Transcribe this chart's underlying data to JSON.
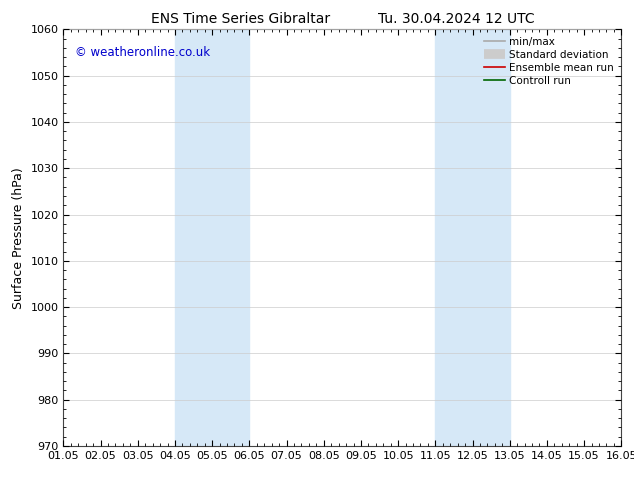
{
  "title_left": "ENS Time Series Gibraltar",
  "title_right": "Tu. 30.04.2024 12 UTC",
  "ylabel": "Surface Pressure (hPa)",
  "ylim": [
    970,
    1060
  ],
  "yticks": [
    970,
    980,
    990,
    1000,
    1010,
    1020,
    1030,
    1040,
    1050,
    1060
  ],
  "xlim": [
    0,
    15
  ],
  "xtick_labels": [
    "01.05",
    "02.05",
    "03.05",
    "04.05",
    "05.05",
    "06.05",
    "07.05",
    "08.05",
    "09.05",
    "10.05",
    "11.05",
    "12.05",
    "13.05",
    "14.05",
    "15.05",
    "16.05"
  ],
  "shaded_bands": [
    {
      "x_start": 3,
      "x_end": 5,
      "color": "#d6e8f7"
    },
    {
      "x_start": 10,
      "x_end": 12,
      "color": "#d6e8f7"
    }
  ],
  "legend_items": [
    {
      "label": "min/max",
      "color": "#aaaaaa",
      "lw": 1.2,
      "style": "line"
    },
    {
      "label": "Standard deviation",
      "color": "#cccccc",
      "lw": 7,
      "style": "band"
    },
    {
      "label": "Ensemble mean run",
      "color": "#cc0000",
      "lw": 1.2,
      "style": "line"
    },
    {
      "label": "Controll run",
      "color": "#006600",
      "lw": 1.2,
      "style": "line"
    }
  ],
  "watermark": "© weatheronline.co.uk",
  "watermark_color": "#0000cc",
  "background_color": "#ffffff",
  "plot_bg_color": "#ffffff",
  "grid_color": "#cccccc",
  "title_fontsize": 10,
  "tick_fontsize": 8,
  "ylabel_fontsize": 9,
  "legend_fontsize": 7.5
}
